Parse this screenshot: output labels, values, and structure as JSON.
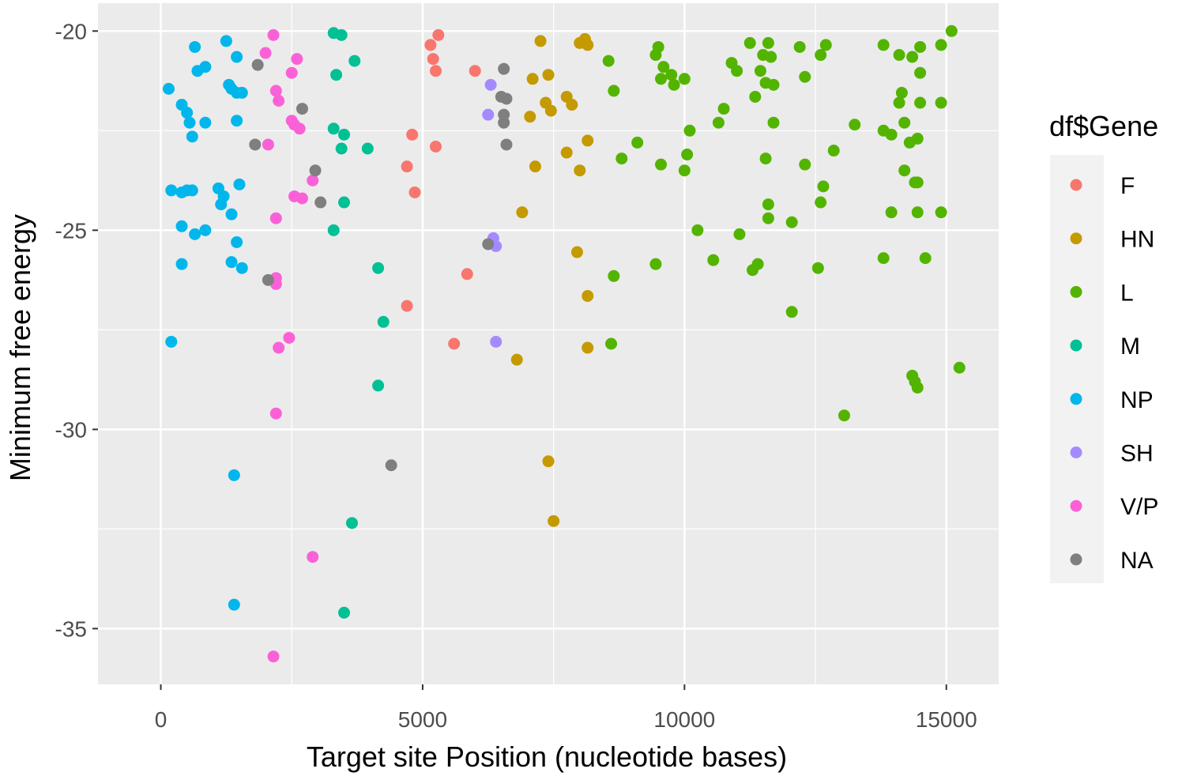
{
  "chart_data": {
    "type": "scatter",
    "xlabel": "Target site Position (nucleotide bases)",
    "ylabel": "Minimum free energy",
    "xlim": [
      -1200,
      16000
    ],
    "ylim": [
      -36.4,
      -19.3
    ],
    "x_ticks": [
      0,
      5000,
      10000,
      15000
    ],
    "x_tick_labels": [
      "0",
      "5000",
      "10000",
      "15000"
    ],
    "y_ticks": [
      -20,
      -25,
      -30,
      -35
    ],
    "y_tick_labels": [
      "-20",
      "-25",
      "-30",
      "-35"
    ],
    "grid": true,
    "legend": {
      "title": "df$Gene",
      "position": "right"
    },
    "series": [
      {
        "name": "F",
        "color": "#F8766D",
        "points": [
          [
            5150,
            -20.35
          ],
          [
            5200,
            -20.7
          ],
          [
            5250,
            -21.0
          ],
          [
            5300,
            -20.1
          ],
          [
            6000,
            -21.0
          ],
          [
            4800,
            -22.6
          ],
          [
            5250,
            -22.9
          ],
          [
            4700,
            -23.4
          ],
          [
            4850,
            -24.05
          ],
          [
            5850,
            -26.1
          ],
          [
            4700,
            -26.9
          ],
          [
            5600,
            -27.85
          ]
        ]
      },
      {
        "name": "HN",
        "color": "#C49A00",
        "points": [
          [
            7250,
            -20.25
          ],
          [
            8000,
            -20.3
          ],
          [
            8100,
            -20.2
          ],
          [
            8150,
            -20.35
          ],
          [
            7100,
            -21.2
          ],
          [
            7400,
            -21.1
          ],
          [
            7350,
            -21.8
          ],
          [
            7450,
            -22.0
          ],
          [
            7050,
            -22.15
          ],
          [
            7750,
            -21.65
          ],
          [
            7850,
            -21.85
          ],
          [
            8150,
            -22.75
          ],
          [
            7750,
            -23.05
          ],
          [
            8000,
            -23.5
          ],
          [
            7150,
            -23.4
          ],
          [
            6900,
            -24.55
          ],
          [
            7950,
            -25.55
          ],
          [
            8150,
            -26.65
          ],
          [
            8150,
            -27.95
          ],
          [
            6800,
            -28.25
          ],
          [
            7400,
            -30.8
          ],
          [
            7500,
            -32.3
          ]
        ]
      },
      {
        "name": "L",
        "color": "#53B400",
        "points": [
          [
            8550,
            -20.75
          ],
          [
            8650,
            -21.5
          ],
          [
            9100,
            -22.8
          ],
          [
            8800,
            -23.2
          ],
          [
            8650,
            -26.15
          ],
          [
            8600,
            -27.85
          ],
          [
            9450,
            -20.6
          ],
          [
            9500,
            -20.4
          ],
          [
            9600,
            -20.9
          ],
          [
            9550,
            -21.2
          ],
          [
            9750,
            -21.1
          ],
          [
            9800,
            -21.35
          ],
          [
            10000,
            -21.2
          ],
          [
            10100,
            -22.5
          ],
          [
            9550,
            -23.35
          ],
          [
            10050,
            -23.1
          ],
          [
            10000,
            -23.5
          ],
          [
            10250,
            -25.0
          ],
          [
            9450,
            -25.85
          ],
          [
            10650,
            -22.3
          ],
          [
            10750,
            -21.95
          ],
          [
            10550,
            -25.75
          ],
          [
            10900,
            -20.8
          ],
          [
            11000,
            -21.0
          ],
          [
            11250,
            -20.3
          ],
          [
            11350,
            -21.65
          ],
          [
            11450,
            -21.0
          ],
          [
            11500,
            -20.6
          ],
          [
            11600,
            -20.3
          ],
          [
            11650,
            -20.65
          ],
          [
            11550,
            -21.3
          ],
          [
            11700,
            -21.35
          ],
          [
            11700,
            -22.3
          ],
          [
            11550,
            -23.2
          ],
          [
            11600,
            -24.35
          ],
          [
            11600,
            -24.7
          ],
          [
            11050,
            -25.1
          ],
          [
            11300,
            -26.0
          ],
          [
            11400,
            -25.85
          ],
          [
            12050,
            -24.8
          ],
          [
            12050,
            -27.05
          ],
          [
            12200,
            -20.4
          ],
          [
            12300,
            -21.15
          ],
          [
            12300,
            -23.35
          ],
          [
            12600,
            -20.6
          ],
          [
            12700,
            -20.35
          ],
          [
            12650,
            -23.9
          ],
          [
            12600,
            -24.3
          ],
          [
            12550,
            -25.95
          ],
          [
            13250,
            -22.35
          ],
          [
            12850,
            -23.0
          ],
          [
            13050,
            -29.65
          ],
          [
            13800,
            -20.35
          ],
          [
            14100,
            -20.6
          ],
          [
            14350,
            -20.65
          ],
          [
            14500,
            -20.4
          ],
          [
            14150,
            -21.55
          ],
          [
            14100,
            -21.8
          ],
          [
            14500,
            -21.05
          ],
          [
            14500,
            -21.8
          ],
          [
            14900,
            -20.35
          ],
          [
            14900,
            -21.8
          ],
          [
            15100,
            -20.0
          ],
          [
            13800,
            -22.5
          ],
          [
            13950,
            -22.6
          ],
          [
            14200,
            -22.3
          ],
          [
            14300,
            -22.8
          ],
          [
            14450,
            -22.7
          ],
          [
            14200,
            -23.5
          ],
          [
            14400,
            -23.8
          ],
          [
            14450,
            -23.8
          ],
          [
            13950,
            -24.55
          ],
          [
            14450,
            -24.55
          ],
          [
            14900,
            -24.55
          ],
          [
            13800,
            -25.7
          ],
          [
            14600,
            -25.7
          ],
          [
            14350,
            -28.65
          ],
          [
            14400,
            -28.8
          ],
          [
            14450,
            -28.95
          ],
          [
            15250,
            -28.45
          ]
        ]
      },
      {
        "name": "M",
        "color": "#00C094",
        "points": [
          [
            3300,
            -20.05
          ],
          [
            3450,
            -20.1
          ],
          [
            3700,
            -20.75
          ],
          [
            3350,
            -21.1
          ],
          [
            3300,
            -22.45
          ],
          [
            3500,
            -22.6
          ],
          [
            3450,
            -22.95
          ],
          [
            3950,
            -22.95
          ],
          [
            3500,
            -24.3
          ],
          [
            3300,
            -25.0
          ],
          [
            4150,
            -25.95
          ],
          [
            4250,
            -27.3
          ],
          [
            4150,
            -28.9
          ],
          [
            3650,
            -32.35
          ],
          [
            3500,
            -34.6
          ]
        ]
      },
      {
        "name": "NP",
        "color": "#00B6EB",
        "points": [
          [
            150,
            -21.45
          ],
          [
            400,
            -21.85
          ],
          [
            500,
            -22.05
          ],
          [
            550,
            -22.3
          ],
          [
            600,
            -22.65
          ],
          [
            650,
            -20.4
          ],
          [
            700,
            -21.0
          ],
          [
            850,
            -20.9
          ],
          [
            850,
            -22.3
          ],
          [
            1250,
            -20.25
          ],
          [
            1300,
            -21.35
          ],
          [
            1350,
            -21.45
          ],
          [
            1450,
            -21.55
          ],
          [
            1550,
            -21.55
          ],
          [
            1450,
            -20.65
          ],
          [
            1450,
            -22.25
          ],
          [
            200,
            -24.0
          ],
          [
            400,
            -24.05
          ],
          [
            500,
            -24.0
          ],
          [
            600,
            -24.0
          ],
          [
            1100,
            -23.95
          ],
          [
            1200,
            -24.15
          ],
          [
            1150,
            -24.35
          ],
          [
            1500,
            -23.85
          ],
          [
            1350,
            -24.6
          ],
          [
            400,
            -24.9
          ],
          [
            650,
            -25.1
          ],
          [
            850,
            -25.0
          ],
          [
            1450,
            -25.3
          ],
          [
            1350,
            -25.8
          ],
          [
            1550,
            -25.95
          ],
          [
            400,
            -25.85
          ],
          [
            200,
            -27.8
          ],
          [
            1400,
            -31.15
          ],
          [
            1400,
            -34.4
          ]
        ]
      },
      {
        "name": "SH",
        "color": "#A58AFF",
        "points": [
          [
            6300,
            -21.35
          ],
          [
            6250,
            -22.1
          ],
          [
            6350,
            -25.2
          ],
          [
            6400,
            -25.4
          ],
          [
            6400,
            -27.8
          ]
        ]
      },
      {
        "name": "V/P",
        "color": "#FB61D7",
        "points": [
          [
            2150,
            -20.1
          ],
          [
            2000,
            -20.55
          ],
          [
            2600,
            -20.7
          ],
          [
            2500,
            -21.05
          ],
          [
            2200,
            -21.5
          ],
          [
            2250,
            -21.75
          ],
          [
            2500,
            -22.25
          ],
          [
            2550,
            -22.35
          ],
          [
            2650,
            -22.45
          ],
          [
            2050,
            -22.85
          ],
          [
            2900,
            -23.75
          ],
          [
            2550,
            -24.15
          ],
          [
            2700,
            -24.2
          ],
          [
            2200,
            -24.7
          ],
          [
            2200,
            -26.2
          ],
          [
            2200,
            -26.35
          ],
          [
            2450,
            -27.7
          ],
          [
            2250,
            -27.95
          ],
          [
            2200,
            -29.6
          ],
          [
            2900,
            -33.2
          ],
          [
            2150,
            -35.7
          ]
        ]
      },
      {
        "name": "NA",
        "color": "#7F7F7F",
        "points": [
          [
            1850,
            -20.85
          ],
          [
            6550,
            -20.95
          ],
          [
            6500,
            -21.65
          ],
          [
            6600,
            -21.7
          ],
          [
            6550,
            -22.1
          ],
          [
            6550,
            -22.3
          ],
          [
            6600,
            -22.85
          ],
          [
            2700,
            -21.95
          ],
          [
            1800,
            -22.85
          ],
          [
            2950,
            -23.5
          ],
          [
            3050,
            -24.3
          ],
          [
            6250,
            -25.35
          ],
          [
            2050,
            -26.25
          ],
          [
            4400,
            -30.9
          ]
        ]
      }
    ]
  }
}
